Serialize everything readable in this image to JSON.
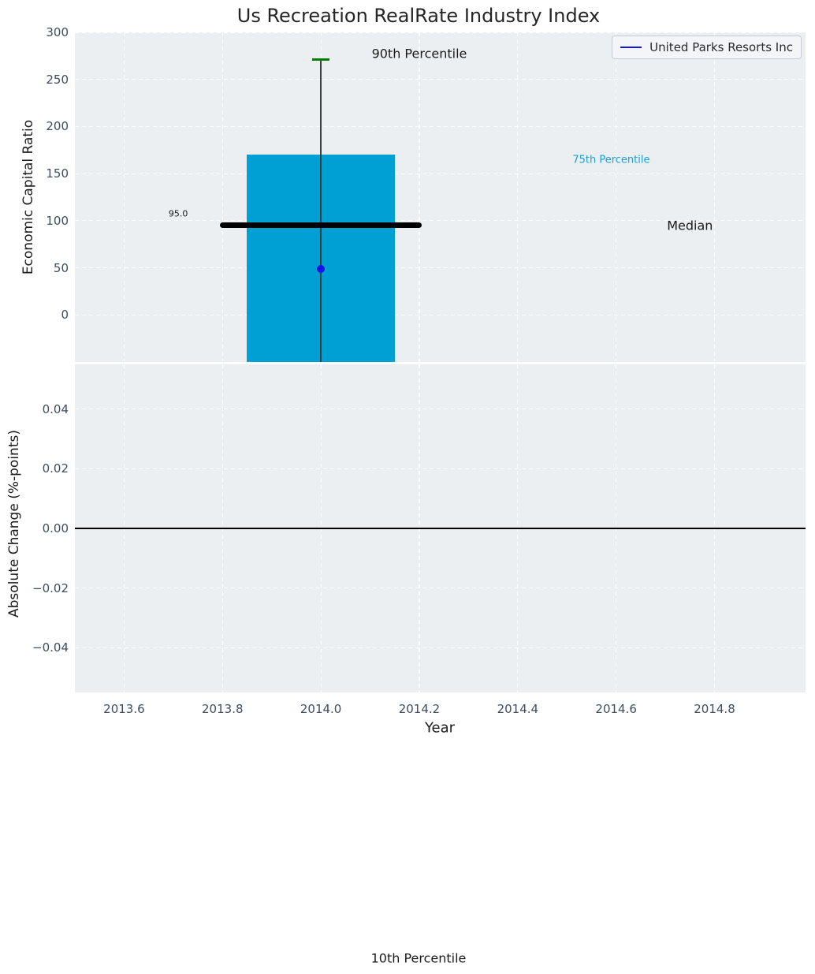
{
  "figure": {
    "title": "Us Recreation RealRate Industry Index",
    "bottom_annotation": "10th Percentile"
  },
  "legend": {
    "position": "upper right",
    "entries": [
      {
        "label": "United Parks Resorts Inc",
        "color": "#1414e8"
      }
    ]
  },
  "colors": {
    "figure_bg": "#ffffff",
    "axes_bg": "#eceff1",
    "grid": "#ffffff",
    "bar": "#009fd4",
    "median_line": "#000000",
    "whisker": "#3f3f3f",
    "p90_cap": "#008000",
    "company_dot": "#1414e8",
    "tick_label": "#3d4e63",
    "text": "#1c1c1c",
    "p75_text": "#1a9fd4",
    "zero_line": "#000000"
  },
  "chart_data": [
    {
      "type": "bar",
      "panel": "economic-capital-ratio",
      "title": "Us Recreation RealRate Industry Index",
      "ylabel": "Economic Capital Ratio",
      "xlim": [
        2013.5,
        2014.985
      ],
      "ylim": [
        -50,
        300
      ],
      "yticks": [
        300,
        250,
        200,
        150,
        100,
        50,
        0
      ],
      "ytick_labels": [
        "300",
        "250",
        "200",
        "150",
        "100",
        "50",
        "0"
      ],
      "xticks": [
        2013.6,
        2013.8,
        2014.0,
        2014.2,
        2014.4,
        2014.6,
        2014.8
      ],
      "grid": "white dashed, on",
      "box": {
        "x": 2014.0,
        "bar_left": 2013.85,
        "bar_right": 2014.15,
        "p75_value": 170,
        "median_value": 95,
        "median_value_label": "95.0",
        "median_line_span": [
          2013.8,
          2014.2
        ],
        "p90_value": 271,
        "p10_value": "below axis range (bar and whisker clipped at bottom)",
        "company": {
          "name": "United Parks Resorts Inc",
          "value": 49
        }
      },
      "annotations": [
        {
          "text": "90th Percentile",
          "x": 2014.2,
          "y": 277,
          "size": 16,
          "color": "#1a1a1a"
        },
        {
          "text": "75th Percentile",
          "x": 2014.59,
          "y": 164,
          "size": 13,
          "color": "#1a9fd4"
        },
        {
          "text": "Median",
          "x": 2014.75,
          "y": 95,
          "size": 16,
          "color": "#1a1a1a"
        },
        {
          "text": "95.0",
          "x": 2013.71,
          "y": 107,
          "size": 11,
          "color": "#1a1a1a"
        }
      ]
    },
    {
      "type": "line",
      "panel": "absolute-change",
      "ylabel": "Absolute Change (%-points)",
      "xlabel": "Year",
      "xlim": [
        2013.5,
        2014.985
      ],
      "ylim": [
        -0.055,
        0.055
      ],
      "yticks": [
        0.04,
        0.02,
        0,
        -0.02,
        -0.04
      ],
      "ytick_labels": [
        "0.04",
        "0.02",
        "0.00",
        "−0.02",
        "−0.04"
      ],
      "xticks": [
        2013.6,
        2013.8,
        2014.0,
        2014.2,
        2014.4,
        2014.6,
        2014.8
      ],
      "xtick_labels": [
        "2013.6",
        "2013.8",
        "2014.0",
        "2014.2",
        "2014.4",
        "2014.6",
        "2014.8"
      ],
      "grid": "white dashed, on",
      "zero_line": 0.0,
      "series": []
    }
  ]
}
